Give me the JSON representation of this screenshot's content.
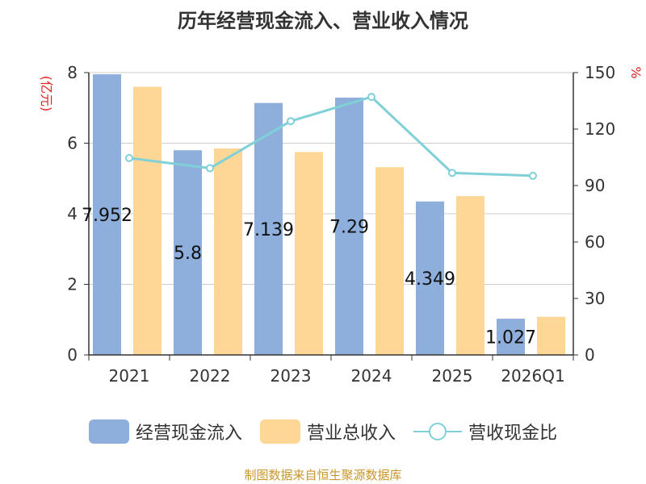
{
  "title": "历年经营现金流入、营业收入情况",
  "source_note": "制图数据来自恒生聚源数据库",
  "chart_data": {
    "type": "bar",
    "categories": [
      "2021",
      "2022",
      "2023",
      "2024",
      "2025",
      "2026Q1"
    ],
    "y_left": {
      "unit_label": "(亿元)",
      "ylim": [
        0,
        8
      ],
      "ticks": [
        0,
        2,
        4,
        6,
        8
      ]
    },
    "y_right": {
      "unit_label": "%",
      "ylim": [
        0,
        150
      ],
      "ticks": [
        0,
        30,
        60,
        90,
        120,
        150
      ]
    },
    "grid": true,
    "legend_position": "bottom",
    "series": [
      {
        "name": "经营现金流入",
        "type": "bar",
        "axis": "left",
        "color": "#8eaedb",
        "values": [
          7.952,
          5.8,
          7.139,
          7.29,
          4.349,
          1.027
        ],
        "data_labels": [
          "7.952",
          "5.8",
          "7.139",
          "7.29",
          "4.349",
          "1.027"
        ]
      },
      {
        "name": "营业总收入",
        "type": "bar",
        "axis": "left",
        "color": "#fed797",
        "values": [
          7.6,
          5.85,
          5.75,
          5.32,
          4.5,
          1.08
        ]
      },
      {
        "name": "营收现金比",
        "type": "line",
        "axis": "right",
        "color": "#80d0d8",
        "values": [
          104.6,
          99.2,
          124.2,
          137.1,
          96.7,
          95.2
        ]
      }
    ]
  }
}
